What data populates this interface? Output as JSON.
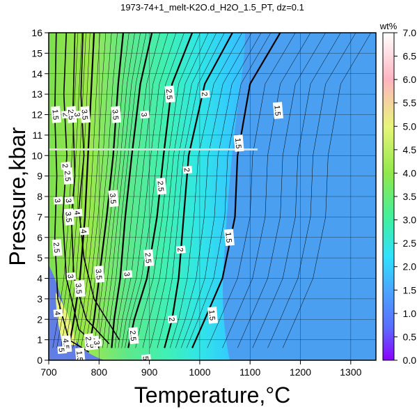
{
  "chart_data": {
    "type": "heatmap",
    "title": "1973-74+1_melt-K2O.d_H2O_1.5_PT, dz=0.1",
    "xlabel": "Temperature,°C",
    "ylabel": "Pressure,kbar",
    "xlim": [
      700,
      1350
    ],
    "ylim": [
      0,
      16
    ],
    "x_ticks": [
      700,
      800,
      900,
      1000,
      1100,
      1200,
      1300
    ],
    "y_ticks": [
      0,
      1,
      2,
      3,
      4,
      5,
      6,
      7,
      8,
      9,
      10,
      11,
      12,
      13,
      14,
      15,
      16
    ],
    "grid": true,
    "colorbar": {
      "label": "wt%",
      "range": [
        0,
        7
      ],
      "ticks": [
        "0.0",
        "0.5",
        "1.0",
        "1.5",
        "2.0",
        "2.5",
        "3.0",
        "3.5",
        "4.0",
        "4.5",
        "5.0",
        "5.5",
        "6.0",
        "6.5",
        "7.0"
      ],
      "stops": [
        {
          "value": 0.0,
          "color": "#8b00ff"
        },
        {
          "value": 0.7,
          "color": "#5a6cff"
        },
        {
          "value": 1.5,
          "color": "#4aa6ff"
        },
        {
          "value": 2.2,
          "color": "#30e0ff"
        },
        {
          "value": 3.0,
          "color": "#3ff0a0"
        },
        {
          "value": 4.0,
          "color": "#90e84a"
        },
        {
          "value": 5.0,
          "color": "#e8f57a"
        },
        {
          "value": 6.0,
          "color": "#ffb4c0"
        },
        {
          "value": 7.0,
          "color": "#ffffff"
        }
      ]
    },
    "contours": [
      {
        "level": "1.5",
        "label_points": [
          [
            1077,
            10.6
          ],
          [
            1058,
            6.0
          ],
          [
            1025,
            2.2
          ],
          [
            1155,
            12.2
          ]
        ]
      },
      {
        "level": "2",
        "label_points": [
          [
            1010,
            13.0
          ],
          [
            975,
            9.3
          ],
          [
            962,
            5.4
          ],
          [
            945,
            2.0
          ]
        ]
      },
      {
        "level": "2.5",
        "label_points": [
          [
            940,
            13.0
          ],
          [
            923,
            8.5
          ],
          [
            898,
            5.0
          ],
          [
            868,
            1.2
          ]
        ]
      },
      {
        "level": "3",
        "label_points": [
          [
            890,
            12.0
          ],
          [
            856,
            4.2
          ],
          [
            718,
            7.8
          ]
        ]
      },
      {
        "level": "3.5",
        "label_points": [
          [
            833,
            12.0
          ],
          [
            828,
            7.9
          ],
          [
            800,
            4.2
          ],
          [
            762,
            3.5
          ]
        ]
      },
      {
        "level": "4",
        "label_points": [
          [
            770,
            6.3
          ]
        ]
      }
    ],
    "annotations": [
      {
        "text": "1.5",
        "x": 714,
        "y": 12.0
      },
      {
        "text": "2",
        "x": 734,
        "y": 12.0
      },
      {
        "text": "2.5",
        "x": 745,
        "y": 12.0
      },
      {
        "text": "3",
        "x": 757,
        "y": 12.0
      },
      {
        "text": "3.5",
        "x": 772,
        "y": 12.0
      },
      {
        "text": "2",
        "x": 733,
        "y": 9.5
      },
      {
        "text": "2.5",
        "x": 738,
        "y": 9.0
      },
      {
        "text": "3",
        "x": 740,
        "y": 7.8
      },
      {
        "text": "3.5",
        "x": 740,
        "y": 7.0
      },
      {
        "text": "4",
        "x": 757,
        "y": 7.2
      },
      {
        "text": "2.5",
        "x": 716,
        "y": 5.5
      },
      {
        "text": "3",
        "x": 744,
        "y": 4.1
      },
      {
        "text": "3.5",
        "x": 760,
        "y": 3.5
      },
      {
        "text": "4",
        "x": 718,
        "y": 2.3
      },
      {
        "text": "4.5",
        "x": 735,
        "y": 0.8
      },
      {
        "text": "5",
        "x": 726,
        "y": 0.5
      },
      {
        "text": "1.5",
        "x": 762,
        "y": 0.2
      },
      {
        "text": "4",
        "x": 790,
        "y": 1.0
      },
      {
        "text": "2.5",
        "x": 780,
        "y": 0.9
      },
      {
        "text": "5",
        "x": 788,
        "y": 0.7
      },
      {
        "text": "3",
        "x": 796,
        "y": 0.85
      },
      {
        "text": "5",
        "x": 893,
        "y": 0.1
      }
    ],
    "highlight_line": {
      "x": [
        700,
        1115
      ],
      "y": 10.3
    }
  }
}
